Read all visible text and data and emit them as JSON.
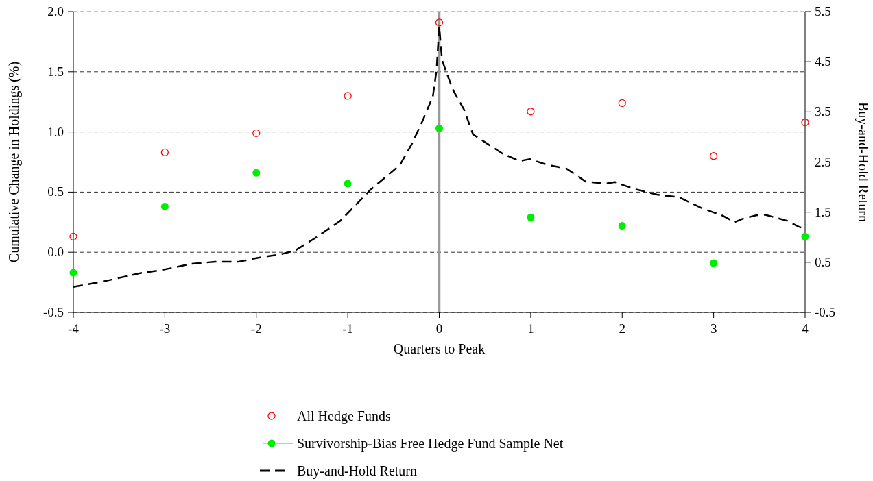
{
  "chart_data": {
    "type": "scatter",
    "xlabel": "Quarters to Peak",
    "ylabel": "Cumulative Change in Holdings (%)",
    "y2label": "Buy-and-Hold Return",
    "x": [
      -4,
      -3,
      -2,
      -1,
      0,
      1,
      2,
      3,
      4
    ],
    "xlim": [
      -4,
      4
    ],
    "xticks": [
      -4,
      -3,
      -2,
      -1,
      0,
      1,
      2,
      3,
      4
    ],
    "ylim": [
      -0.5,
      2.0
    ],
    "yticks": [
      -0.5,
      {
        "value": 0,
        "label": "0.0"
      },
      0.5,
      {
        "value": 1,
        "label": "1.0"
      },
      1.5,
      {
        "value": 2,
        "label": "2.0"
      }
    ],
    "y2lim": [
      -0.5,
      5.5
    ],
    "y2ticks": [
      -0.5,
      0.5,
      1.5,
      2.5,
      3.5,
      4.5,
      5.5
    ],
    "grid": "y",
    "legend": "bottom",
    "ref_lines": [
      {
        "axis": "x",
        "value": 0,
        "color": "#999999"
      }
    ],
    "series": [
      {
        "name": "All Hedge Funds",
        "marker": "circle",
        "color": "#ff0000",
        "values": [
          0.13,
          0.83,
          0.99,
          1.3,
          1.91,
          1.17,
          1.24,
          0.8,
          1.08
        ]
      },
      {
        "name": "Survivorship-Bias Free Hedge Fund Sample Net",
        "marker": "circle",
        "color": "#00ee00",
        "values": [
          -0.17,
          0.38,
          0.66,
          0.57,
          1.03,
          0.29,
          0.22,
          -0.09,
          0.13
        ]
      },
      {
        "name": "Buy-and-Hold Return",
        "type": "line",
        "axis": "y2",
        "color": "#000000",
        "line_style": "dashed",
        "x": [
          -4,
          -3.64,
          -3.28,
          -3.02,
          -2.71,
          -2.45,
          -2.2,
          -1.98,
          -1.73,
          -1.57,
          -1.36,
          -1.08,
          -0.75,
          -0.43,
          -0.3,
          -0.18,
          -0.07,
          -0.03,
          0,
          0.03,
          0.08,
          0.15,
          0.27,
          0.37,
          0.53,
          0.69,
          0.88,
          0.99,
          1.17,
          1.39,
          1.49,
          1.6,
          1.82,
          1.92,
          2.14,
          2.38,
          2.62,
          2.86,
          2.99,
          3.1,
          3.23,
          3.32,
          3.47,
          3.56,
          3.8,
          3.93,
          3.98
        ],
        "values": [
          0.01,
          0.13,
          0.28,
          0.35,
          0.47,
          0.51,
          0.51,
          0.59,
          0.66,
          0.74,
          0.98,
          1.33,
          1.95,
          2.44,
          2.86,
          3.33,
          3.81,
          4.32,
          5.21,
          4.54,
          4.28,
          3.94,
          3.55,
          3.05,
          2.86,
          2.67,
          2.52,
          2.56,
          2.45,
          2.37,
          2.25,
          2.11,
          2.07,
          2.1,
          1.96,
          1.85,
          1.8,
          1.59,
          1.5,
          1.43,
          1.3,
          1.37,
          1.44,
          1.45,
          1.33,
          1.21,
          1.18
        ]
      }
    ]
  }
}
